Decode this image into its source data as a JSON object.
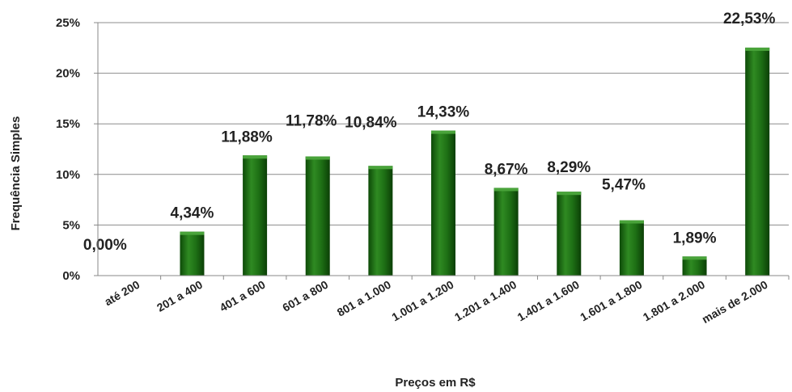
{
  "chart_data": {
    "type": "bar",
    "xlabel": "Preços em R$",
    "ylabel": "Frequência Simples",
    "ylim": [
      0,
      25
    ],
    "yticks": [
      "0%",
      "5%",
      "10%",
      "15%",
      "20%",
      "25%"
    ],
    "grid": true,
    "legend": "none",
    "bar_color": "#1b6e12",
    "categories": [
      "até 200",
      "201 a 400",
      "401 a 600",
      "601 a 800",
      "801 a 1.000",
      "1.001 a 1.200",
      "1.201 a 1.400",
      "1.401 a 1.600",
      "1.601 a 1.800",
      "1.801 a 2.000",
      "mais de 2.000"
    ],
    "values": [
      0.0,
      4.34,
      11.88,
      11.78,
      10.84,
      14.33,
      8.67,
      8.29,
      5.47,
      1.89,
      22.53
    ],
    "labels": [
      "0,00%",
      "4,34%",
      "11,88%",
      "11,78%",
      "10,84%",
      "14,33%",
      "8,67%",
      "8,29%",
      "5,47%",
      "1,89%",
      "22,53%"
    ]
  }
}
